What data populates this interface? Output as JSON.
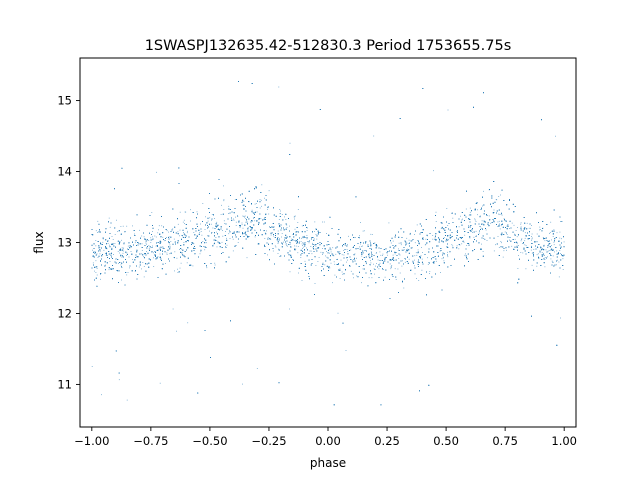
{
  "chart_data": {
    "type": "scatter",
    "title": "1SWASPJ132635.42-512830.3 Period 1753655.75s",
    "xlabel": "phase",
    "ylabel": "flux",
    "xlim": [
      -1.05,
      1.05
    ],
    "ylim": [
      10.4,
      15.6
    ],
    "x_ticks": [
      -1.0,
      -0.75,
      -0.5,
      -0.25,
      0.0,
      0.25,
      0.5,
      0.75,
      1.0
    ],
    "x_tick_labels": [
      "−1.00",
      "−0.75",
      "−0.50",
      "−0.25",
      "0.00",
      "0.25",
      "0.50",
      "0.75",
      "1.00"
    ],
    "y_ticks": [
      11,
      12,
      13,
      14,
      15
    ],
    "y_tick_labels": [
      "11",
      "12",
      "13",
      "14",
      "15"
    ],
    "grid": false,
    "legend": "none",
    "marker_color": "#1f77b4",
    "x_range": [
      -1.0,
      1.0
    ],
    "series": [
      {
        "x": [
          -1.0,
          -0.9,
          -0.8,
          -0.7,
          -0.6,
          -0.5,
          -0.4,
          -0.3,
          -0.2,
          -0.1,
          0.0,
          0.1,
          0.2,
          0.3,
          0.4,
          0.5,
          0.6,
          0.7,
          0.8,
          0.9,
          1.0
        ],
        "y": [
          12.85,
          12.9,
          12.85,
          12.95,
          13.05,
          13.15,
          13.25,
          13.35,
          13.1,
          12.95,
          12.85,
          12.8,
          12.8,
          12.85,
          12.9,
          13.05,
          13.2,
          13.3,
          13.1,
          12.95,
          12.9
        ],
        "spread": [
          0.35,
          0.35,
          0.35,
          0.35,
          0.38,
          0.4,
          0.42,
          0.42,
          0.38,
          0.35,
          0.33,
          0.33,
          0.33,
          0.33,
          0.35,
          0.38,
          0.4,
          0.42,
          0.38,
          0.35,
          0.35
        ],
        "y_range": [
          10.6,
          15.4
        ]
      }
    ]
  }
}
